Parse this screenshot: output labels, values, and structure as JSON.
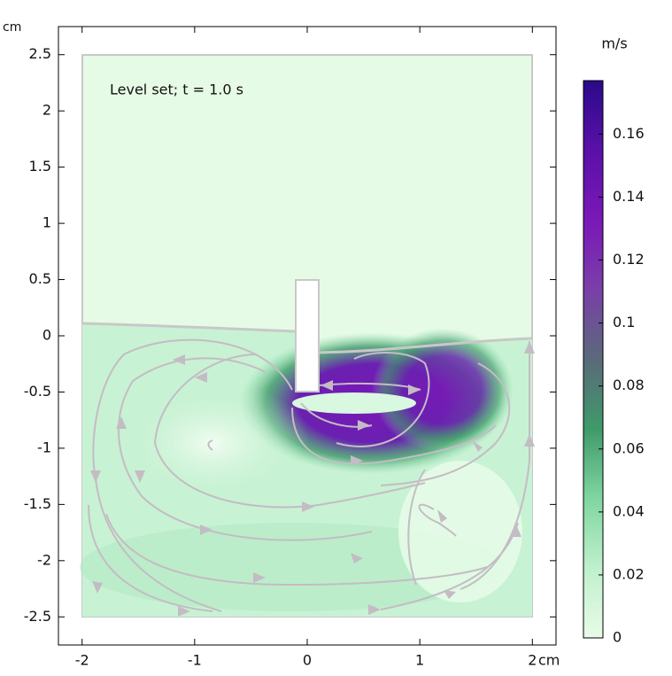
{
  "chart_data": {
    "type": "surface",
    "title": "Level set; t = 1.0 s",
    "x_unit": "cm",
    "y_unit": "cm",
    "xlim": [
      -2.21,
      2.21
    ],
    "ylim": [
      -2.75,
      2.75
    ],
    "xticks": [
      -2,
      -1,
      0,
      1,
      2
    ],
    "yticks": [
      -2.5,
      -2,
      -1.5,
      -1,
      -0.5,
      0,
      0.5,
      1,
      1.5,
      2,
      2.5
    ],
    "colorbar": {
      "unit": "m/s",
      "clim": [
        0,
        0.177
      ],
      "ticks": [
        0,
        0.02,
        0.04,
        0.06,
        0.08,
        0.1,
        0.12,
        0.14,
        0.16
      ],
      "colors": [
        "#e8fbe8",
        "#bff0cc",
        "#7fd6a0",
        "#3f9a6a",
        "#5a6a7a",
        "#7a3fa8",
        "#7a18b8",
        "#5a10a8",
        "#2a0a8a"
      ]
    }
  }
}
